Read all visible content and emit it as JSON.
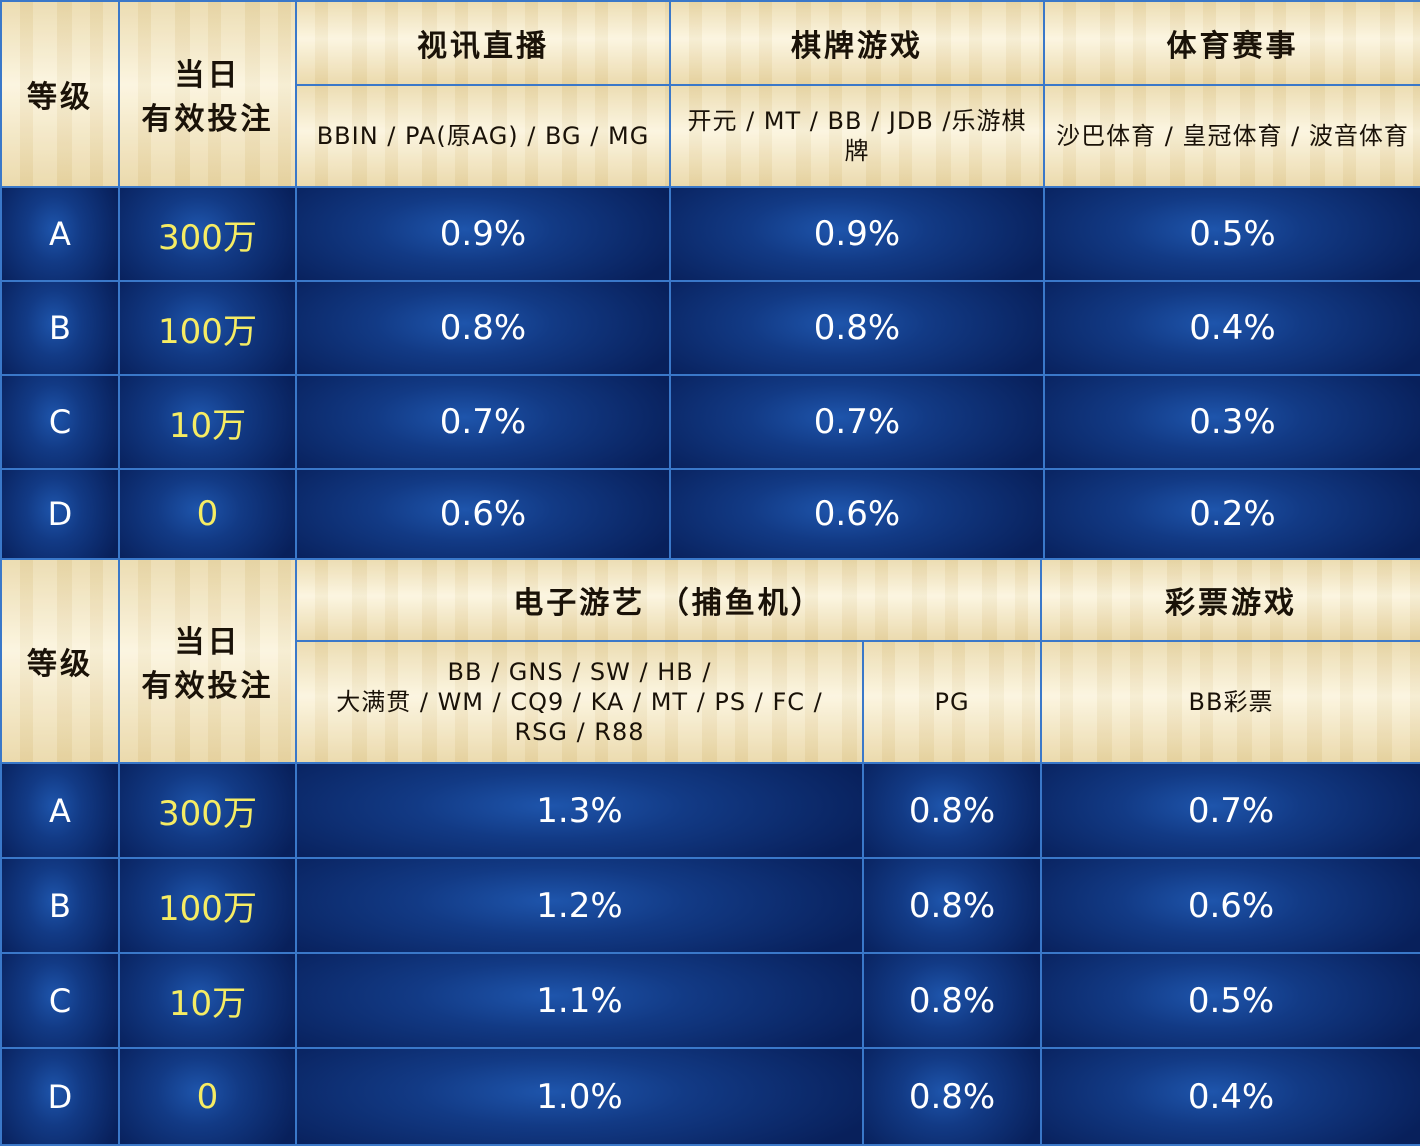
{
  "table1": {
    "level_header": "等级",
    "bet_header_line1": "当日",
    "bet_header_line2": "有效投注",
    "categories": [
      {
        "name": "视讯直播",
        "providers": "BBIN / PA(原AG) / BG / MG"
      },
      {
        "name": "棋牌游戏",
        "providers": "开元 / MT / BB / JDB /乐游棋牌"
      },
      {
        "name": "体育赛事",
        "providers": "沙巴体育 / 皇冠体育 / 波音体育"
      }
    ],
    "rows": [
      {
        "level": "A",
        "bet": "300万",
        "rates": [
          "0.9%",
          "0.9%",
          "0.5%"
        ]
      },
      {
        "level": "B",
        "bet": "100万",
        "rates": [
          "0.8%",
          "0.8%",
          "0.4%"
        ]
      },
      {
        "level": "C",
        "bet": "10万",
        "rates": [
          "0.7%",
          "0.7%",
          "0.3%"
        ]
      },
      {
        "level": "D",
        "bet": "0",
        "rates": [
          "0.6%",
          "0.6%",
          "0.2%"
        ]
      }
    ]
  },
  "table2": {
    "level_header": "等级",
    "bet_header_line1": "当日",
    "bet_header_line2": "有效投注",
    "categories": [
      {
        "name": "电子游艺 （捕鱼机）",
        "providers": [
          "BB / GNS / SW /  HB /",
          "大满贯 / WM / CQ9 / KA / MT / PS / FC /",
          "RSG / R88",
          "PG"
        ]
      },
      {
        "name": "彩票游戏",
        "providers": "BB彩票"
      }
    ],
    "rows": [
      {
        "level": "A",
        "bet": "300万",
        "rates": [
          "1.3%",
          "0.8%",
          "0.7%"
        ]
      },
      {
        "level": "B",
        "bet": "100万",
        "rates": [
          "1.2%",
          "0.8%",
          "0.6%"
        ]
      },
      {
        "level": "C",
        "bet": "10万",
        "rates": [
          "1.1%",
          "0.8%",
          "0.5%"
        ]
      },
      {
        "level": "D",
        "bet": "0",
        "rates": [
          "1.0%",
          "0.8%",
          "0.4%"
        ]
      }
    ]
  }
}
